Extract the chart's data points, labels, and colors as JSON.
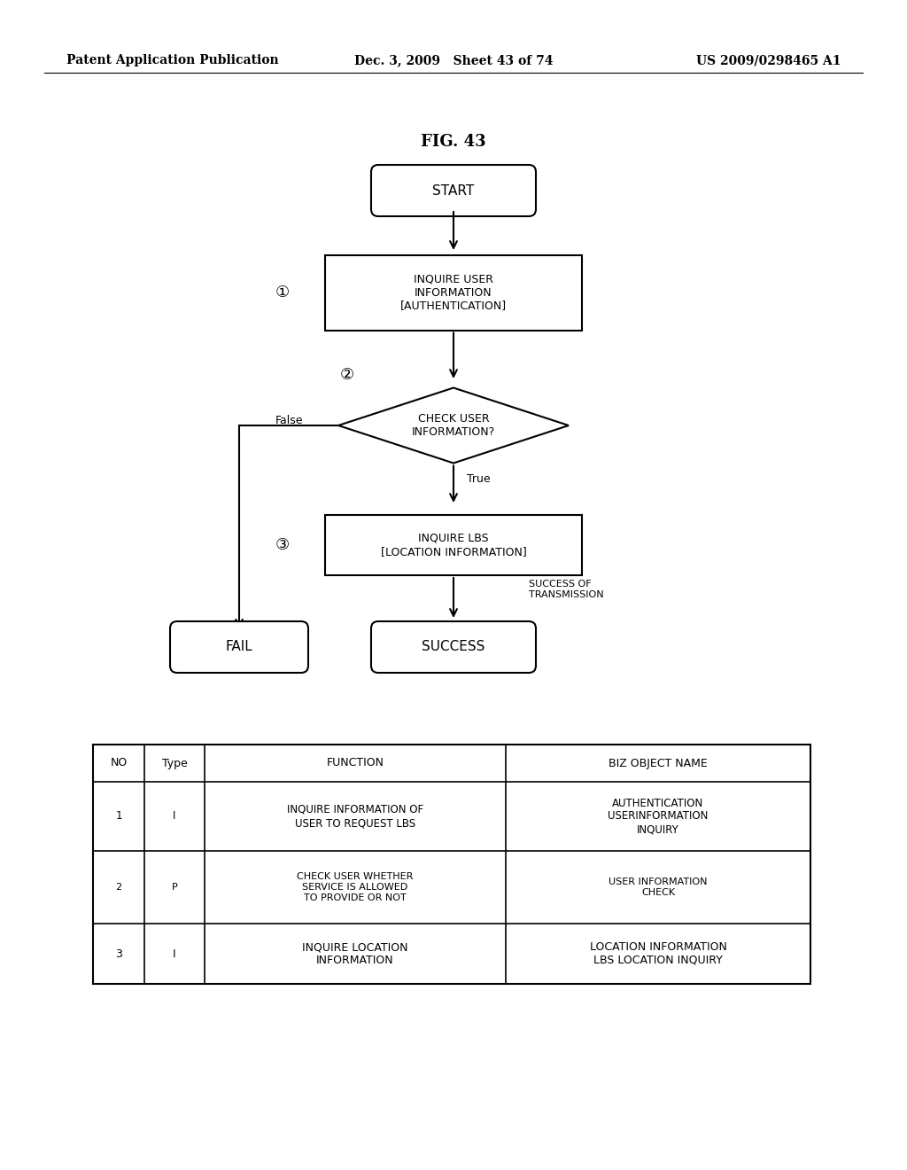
{
  "header_left": "Patent Application Publication",
  "header_mid": "Dec. 3, 2009   Sheet 43 of 74",
  "header_right": "US 2009/0298465 A1",
  "fig_title": "FIG. 43",
  "bg_color": "#ffffff",
  "flowchart": {
    "start_text": "START",
    "box1_text": "INQUIRE USER\nINFORMATION\n[AUTHENTICATION]",
    "diamond_text": "CHECK USER\nINFORMATION?",
    "box3_text": "INQUIRE LBS\n[LOCATION INFORMATION]",
    "fail_text": "FAIL",
    "success_text": "SUCCESS",
    "false_label": "False",
    "true_label": "True",
    "success_label": "SUCCESS OF\nTRANSMISSION",
    "num1": "①",
    "num2": "②",
    "num3": "③"
  },
  "table": {
    "headers": [
      "NO",
      "Type",
      "FUNCTION",
      "BIZ OBJECT NAME"
    ],
    "rows": [
      [
        "1",
        "I",
        "INQUIRE INFORMATION OF\nUSER TO REQUEST LBS",
        "AUTHENTICATION\nUSERINFORMATION\nINQUIRY"
      ],
      [
        "2",
        "P",
        "CHECK USER WHETHER\nSERVICE IS ALLOWED\nTO PROVIDE OR NOT",
        "USER INFORMATION\nCHECK"
      ],
      [
        "3",
        "I",
        "INQUIRE LOCATION\nINFORMATION",
        "LOCATION INFORMATION\nLBS LOCATION INQUIRY"
      ]
    ]
  }
}
